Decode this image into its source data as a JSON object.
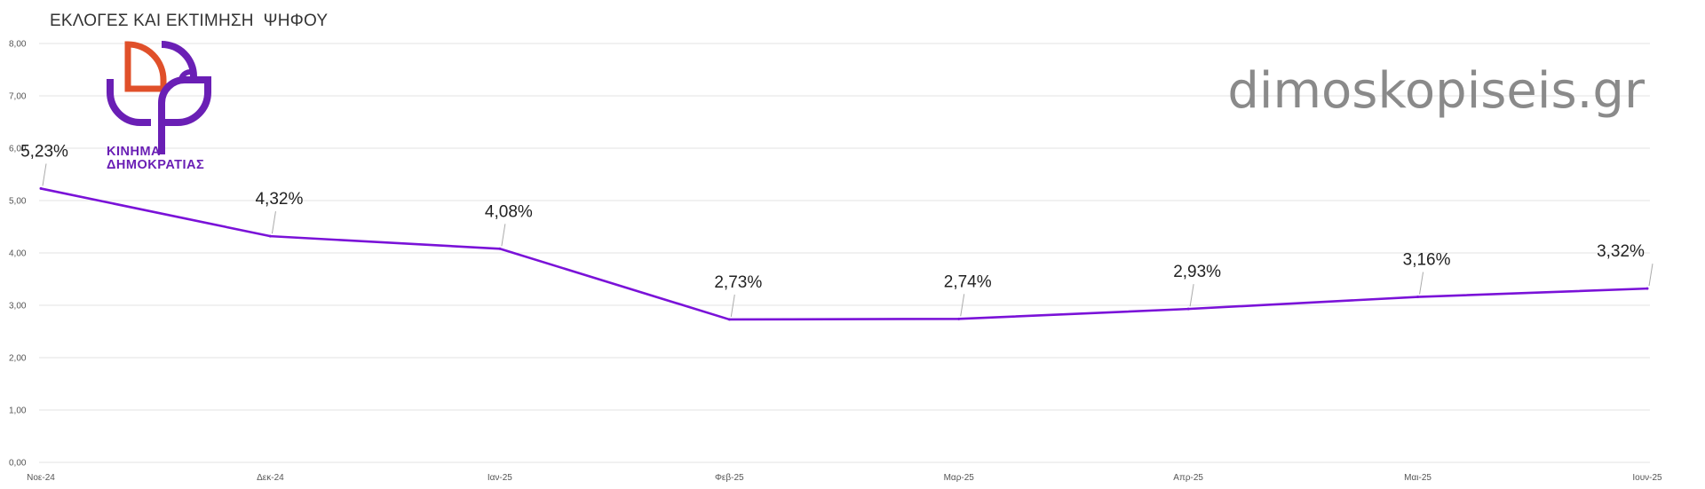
{
  "header": {
    "title": "ΕΚΛΟΓΕΣ ΚΑΙ ΕΚΤΙΜΗΣΗ  ΨΗΦΟΥ",
    "brand": "dimoskopiseis.gr",
    "logo_line1": "ΚΙΝΗΜΑ",
    "logo_line2": "ΔΗΜΟΚΡΑΤΙΑΣ"
  },
  "colors": {
    "line": "#7a12d8",
    "grid": "#e3e3e3",
    "logo_purple": "#6a1fb5",
    "logo_orange": "#e0502a"
  },
  "chart_data": {
    "type": "line",
    "title": "ΕΚΛΟΓΕΣ ΚΑΙ ΕΚΤΙΜΗΣΗ  ΨΗΦΟΥ",
    "categories": [
      "Νοε-24",
      "Δεκ-24",
      "Ιαν-25",
      "Φεβ-25",
      "Μαρ-25",
      "Απρ-25",
      "Μαι-25",
      "Ιουν-25"
    ],
    "series": [
      {
        "values": [
          5.23,
          4.32,
          4.08,
          2.73,
          2.74,
          2.93,
          3.16,
          3.32
        ]
      }
    ],
    "data_labels": [
      "5,23%",
      "4,32%",
      "4,08%",
      "2,73%",
      "2,74%",
      "2,93%",
      "3,16%",
      "3,32%"
    ],
    "ylim": [
      0,
      8
    ],
    "yticks": [
      "0,00",
      "1,00",
      "2,00",
      "3,00",
      "4,00",
      "5,00",
      "6,00",
      "7,00",
      "8,00"
    ],
    "grid": true,
    "xlabel": "",
    "ylabel": ""
  }
}
